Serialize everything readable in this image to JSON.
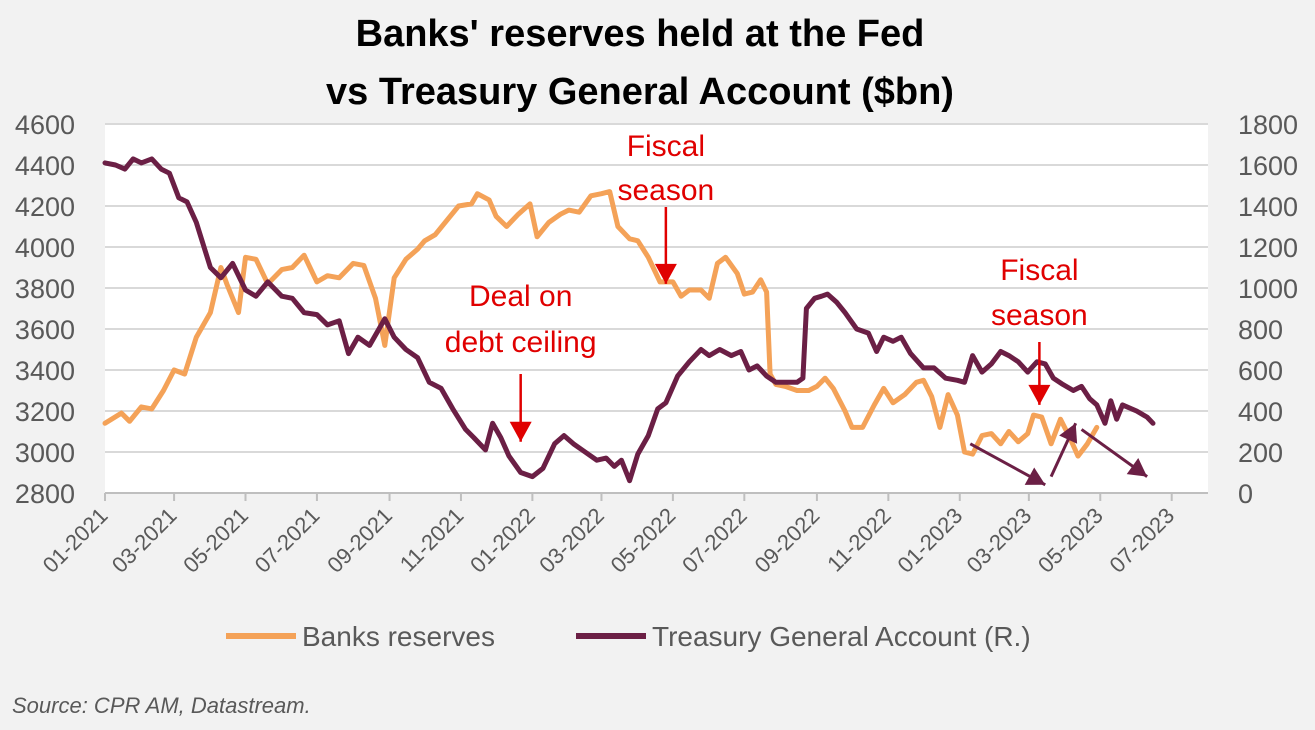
{
  "chart_data": {
    "type": "line",
    "title_lines": [
      "Banks' reserves held at the Fed",
      "vs Treasury General Account ($bn)"
    ],
    "y_left": {
      "min": 2800,
      "max": 4600,
      "ticks": [
        "4600",
        "4400",
        "4200",
        "4000",
        "3800",
        "3600",
        "3400",
        "3200",
        "3000",
        "2800"
      ]
    },
    "y_right": {
      "min": 0,
      "max": 1800,
      "ticks": [
        "1800",
        "1600",
        "1400",
        "1200",
        "1000",
        "800",
        "600",
        "400",
        "200",
        "0"
      ]
    },
    "x_ticks": [
      "01-2021",
      "03-2021",
      "05-2021",
      "07-2021",
      "09-2021",
      "11-2021",
      "01-2022",
      "03-2022",
      "05-2022",
      "07-2022",
      "09-2022",
      "11-2022",
      "01-2023",
      "03-2023",
      "05-2023",
      "07-2023"
    ],
    "x_range": [
      "2021-01-01",
      "2023-08-01"
    ],
    "grid": true,
    "legend_position": "bottom",
    "series": [
      {
        "name": "Banks reserves",
        "axis": "left",
        "color": "#f4a258",
        "points": [
          [
            "2021-01-01",
            3140
          ],
          [
            "2021-01-15",
            3190
          ],
          [
            "2021-01-22",
            3150
          ],
          [
            "2021-02-01",
            3220
          ],
          [
            "2021-02-10",
            3210
          ],
          [
            "2021-02-20",
            3300
          ],
          [
            "2021-03-01",
            3400
          ],
          [
            "2021-03-10",
            3380
          ],
          [
            "2021-03-20",
            3560
          ],
          [
            "2021-04-01",
            3680
          ],
          [
            "2021-04-10",
            3900
          ],
          [
            "2021-04-15",
            3820
          ],
          [
            "2021-04-25",
            3680
          ],
          [
            "2021-05-01",
            3950
          ],
          [
            "2021-05-10",
            3940
          ],
          [
            "2021-05-20",
            3820
          ],
          [
            "2021-06-01",
            3890
          ],
          [
            "2021-06-10",
            3900
          ],
          [
            "2021-06-20",
            3960
          ],
          [
            "2021-07-01",
            3830
          ],
          [
            "2021-07-10",
            3860
          ],
          [
            "2021-07-20",
            3850
          ],
          [
            "2021-08-01",
            3920
          ],
          [
            "2021-08-10",
            3910
          ],
          [
            "2021-08-20",
            3750
          ],
          [
            "2021-08-28",
            3520
          ],
          [
            "2021-09-05",
            3850
          ],
          [
            "2021-09-15",
            3940
          ],
          [
            "2021-09-25",
            3990
          ],
          [
            "2021-10-01",
            4030
          ],
          [
            "2021-10-10",
            4060
          ],
          [
            "2021-10-20",
            4130
          ],
          [
            "2021-10-30",
            4200
          ],
          [
            "2021-11-10",
            4210
          ],
          [
            "2021-11-15",
            4260
          ],
          [
            "2021-11-25",
            4230
          ],
          [
            "2021-12-01",
            4150
          ],
          [
            "2021-12-10",
            4100
          ],
          [
            "2021-12-20",
            4160
          ],
          [
            "2021-12-30",
            4210
          ],
          [
            "2022-01-05",
            4050
          ],
          [
            "2022-01-15",
            4120
          ],
          [
            "2022-01-25",
            4160
          ],
          [
            "2022-02-01",
            4180
          ],
          [
            "2022-02-10",
            4170
          ],
          [
            "2022-02-20",
            4250
          ],
          [
            "2022-03-01",
            4260
          ],
          [
            "2022-03-08",
            4270
          ],
          [
            "2022-03-15",
            4100
          ],
          [
            "2022-03-25",
            4040
          ],
          [
            "2022-04-01",
            4030
          ],
          [
            "2022-04-10",
            3950
          ],
          [
            "2022-04-20",
            3830
          ],
          [
            "2022-05-01",
            3830
          ],
          [
            "2022-05-08",
            3760
          ],
          [
            "2022-05-15",
            3790
          ],
          [
            "2022-05-25",
            3790
          ],
          [
            "2022-06-01",
            3750
          ],
          [
            "2022-06-08",
            3920
          ],
          [
            "2022-06-15",
            3950
          ],
          [
            "2022-06-25",
            3870
          ],
          [
            "2022-07-01",
            3770
          ],
          [
            "2022-07-08",
            3780
          ],
          [
            "2022-07-15",
            3840
          ],
          [
            "2022-07-20",
            3780
          ],
          [
            "2022-07-23",
            3380
          ],
          [
            "2022-07-28",
            3330
          ],
          [
            "2022-08-05",
            3320
          ],
          [
            "2022-08-15",
            3300
          ],
          [
            "2022-08-25",
            3300
          ],
          [
            "2022-09-01",
            3320
          ],
          [
            "2022-09-08",
            3360
          ],
          [
            "2022-09-15",
            3310
          ],
          [
            "2022-09-25",
            3200
          ],
          [
            "2022-10-01",
            3120
          ],
          [
            "2022-10-10",
            3120
          ],
          [
            "2022-10-20",
            3230
          ],
          [
            "2022-10-28",
            3310
          ],
          [
            "2022-11-05",
            3240
          ],
          [
            "2022-11-15",
            3280
          ],
          [
            "2022-11-25",
            3340
          ],
          [
            "2022-12-01",
            3350
          ],
          [
            "2022-12-08",
            3270
          ],
          [
            "2022-12-15",
            3120
          ],
          [
            "2022-12-22",
            3280
          ],
          [
            "2022-12-30",
            3180
          ],
          [
            "2023-01-05",
            3000
          ],
          [
            "2023-01-12",
            2990
          ],
          [
            "2023-01-20",
            3080
          ],
          [
            "2023-01-28",
            3090
          ],
          [
            "2023-02-05",
            3040
          ],
          [
            "2023-02-12",
            3100
          ],
          [
            "2023-02-20",
            3050
          ],
          [
            "2023-02-28",
            3090
          ],
          [
            "2023-03-05",
            3180
          ],
          [
            "2023-03-12",
            3170
          ],
          [
            "2023-03-20",
            3040
          ],
          [
            "2023-03-28",
            3160
          ],
          [
            "2023-04-05",
            3070
          ],
          [
            "2023-04-12",
            2980
          ],
          [
            "2023-04-20",
            3040
          ],
          [
            "2023-04-28",
            3120
          ]
        ]
      },
      {
        "name": "Treasury General Account (R.)",
        "axis": "right",
        "color": "#6b1f45",
        "points": [
          [
            "2021-01-01",
            1610
          ],
          [
            "2021-01-10",
            1600
          ],
          [
            "2021-01-18",
            1580
          ],
          [
            "2021-01-25",
            1630
          ],
          [
            "2021-02-01",
            1610
          ],
          [
            "2021-02-10",
            1630
          ],
          [
            "2021-02-18",
            1580
          ],
          [
            "2021-02-25",
            1560
          ],
          [
            "2021-03-05",
            1440
          ],
          [
            "2021-03-12",
            1420
          ],
          [
            "2021-03-20",
            1320
          ],
          [
            "2021-04-01",
            1100
          ],
          [
            "2021-04-10",
            1050
          ],
          [
            "2021-04-20",
            1120
          ],
          [
            "2021-05-01",
            990
          ],
          [
            "2021-05-10",
            960
          ],
          [
            "2021-05-20",
            1030
          ],
          [
            "2021-06-01",
            960
          ],
          [
            "2021-06-10",
            950
          ],
          [
            "2021-06-20",
            880
          ],
          [
            "2021-07-01",
            870
          ],
          [
            "2021-07-10",
            820
          ],
          [
            "2021-07-20",
            840
          ],
          [
            "2021-07-28",
            680
          ],
          [
            "2021-08-05",
            760
          ],
          [
            "2021-08-15",
            720
          ],
          [
            "2021-08-28",
            850
          ],
          [
            "2021-09-05",
            760
          ],
          [
            "2021-09-15",
            700
          ],
          [
            "2021-09-25",
            660
          ],
          [
            "2021-10-05",
            540
          ],
          [
            "2021-10-15",
            510
          ],
          [
            "2021-10-25",
            410
          ],
          [
            "2021-11-05",
            310
          ],
          [
            "2021-11-12",
            270
          ],
          [
            "2021-11-22",
            210
          ],
          [
            "2021-11-28",
            340
          ],
          [
            "2021-12-05",
            270
          ],
          [
            "2021-12-12",
            180
          ],
          [
            "2021-12-22",
            100
          ],
          [
            "2022-01-01",
            80
          ],
          [
            "2022-01-10",
            120
          ],
          [
            "2022-01-20",
            240
          ],
          [
            "2022-01-28",
            280
          ],
          [
            "2022-02-05",
            240
          ],
          [
            "2022-02-15",
            200
          ],
          [
            "2022-02-25",
            160
          ],
          [
            "2022-03-05",
            170
          ],
          [
            "2022-03-12",
            130
          ],
          [
            "2022-03-18",
            160
          ],
          [
            "2022-03-25",
            60
          ],
          [
            "2022-04-01",
            190
          ],
          [
            "2022-04-10",
            280
          ],
          [
            "2022-04-18",
            410
          ],
          [
            "2022-04-25",
            440
          ],
          [
            "2022-05-05",
            570
          ],
          [
            "2022-05-15",
            640
          ],
          [
            "2022-05-25",
            700
          ],
          [
            "2022-06-01",
            670
          ],
          [
            "2022-06-10",
            700
          ],
          [
            "2022-06-20",
            670
          ],
          [
            "2022-06-28",
            690
          ],
          [
            "2022-07-05",
            600
          ],
          [
            "2022-07-12",
            620
          ],
          [
            "2022-07-20",
            570
          ],
          [
            "2022-07-28",
            540
          ],
          [
            "2022-08-05",
            540
          ],
          [
            "2022-08-15",
            540
          ],
          [
            "2022-08-20",
            560
          ],
          [
            "2022-08-23",
            900
          ],
          [
            "2022-08-30",
            950
          ],
          [
            "2022-09-05",
            960
          ],
          [
            "2022-09-10",
            970
          ],
          [
            "2022-09-18",
            930
          ],
          [
            "2022-09-25",
            880
          ],
          [
            "2022-10-05",
            800
          ],
          [
            "2022-10-15",
            780
          ],
          [
            "2022-10-22",
            690
          ],
          [
            "2022-10-28",
            760
          ],
          [
            "2022-11-05",
            740
          ],
          [
            "2022-11-12",
            760
          ],
          [
            "2022-11-20",
            680
          ],
          [
            "2022-12-01",
            610
          ],
          [
            "2022-12-10",
            610
          ],
          [
            "2022-12-20",
            560
          ],
          [
            "2022-12-30",
            550
          ],
          [
            "2023-01-05",
            540
          ],
          [
            "2023-01-12",
            670
          ],
          [
            "2023-01-20",
            590
          ],
          [
            "2023-01-28",
            630
          ],
          [
            "2023-02-05",
            690
          ],
          [
            "2023-02-12",
            670
          ],
          [
            "2023-02-20",
            640
          ],
          [
            "2023-02-28",
            590
          ],
          [
            "2023-03-08",
            640
          ],
          [
            "2023-03-15",
            630
          ],
          [
            "2023-03-22",
            560
          ],
          [
            "2023-03-30",
            530
          ],
          [
            "2023-04-08",
            500
          ],
          [
            "2023-04-15",
            520
          ],
          [
            "2023-04-22",
            460
          ],
          [
            "2023-04-28",
            430
          ],
          [
            "2023-05-05",
            340
          ],
          [
            "2023-05-10",
            450
          ],
          [
            "2023-05-15",
            360
          ],
          [
            "2023-05-20",
            430
          ],
          [
            "2023-06-01",
            400
          ],
          [
            "2023-06-10",
            370
          ],
          [
            "2023-06-15",
            340
          ]
        ]
      }
    ],
    "annotations": [
      {
        "lines": [
          "Fiscal",
          "season"
        ],
        "arrow_date": "2022-04-25",
        "arrow_value": 3820
      },
      {
        "lines": [
          "Deal on",
          "debt ceiling"
        ],
        "arrow_date": "2021-12-22",
        "arrow_value": 3050
      },
      {
        "lines": [
          "Fiscal",
          "season"
        ],
        "arrow_date": "2023-03-10",
        "arrow_value": 3230
      }
    ],
    "forecast_arrows": [
      {
        "from": [
          "2023-01-10",
          3040
        ],
        "to": [
          "2023-03-15",
          2840
        ]
      },
      {
        "from": [
          "2023-03-20",
          2880
        ],
        "to": [
          "2023-04-10",
          3140
        ]
      },
      {
        "from": [
          "2023-04-15",
          3110
        ],
        "to": [
          "2023-06-10",
          2880
        ]
      }
    ]
  },
  "legend": {
    "reserves_label": "Banks reserves",
    "tga_label": "Treasury General Account (R.)"
  },
  "source": "Source: CPR AM, Datastream."
}
